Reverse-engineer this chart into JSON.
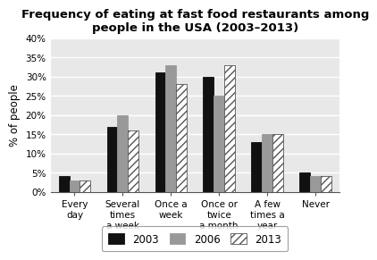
{
  "title": "Frequency of eating at fast food restaurants among\npeople in the USA (2003–2013)",
  "categories": [
    "Every\nday",
    "Several\ntimes\na week",
    "Once a\nweek",
    "Once or\ntwice\na month",
    "A few\ntimes a\nyear",
    "Never"
  ],
  "series": {
    "2003": [
      4,
      17,
      31,
      30,
      13,
      5
    ],
    "2006": [
      3,
      20,
      33,
      25,
      15,
      4
    ],
    "2013": [
      3,
      16,
      28,
      33,
      15,
      4
    ]
  },
  "bar_colors": {
    "2003": "#111111",
    "2006": "#999999",
    "2013": "#ffffff"
  },
  "bar_edgecolors": {
    "2003": "#111111",
    "2006": "#999999",
    "2013": "#555555"
  },
  "hatch": {
    "2003": "",
    "2006": "",
    "2013": "////"
  },
  "ylabel": "% of people",
  "ylim": [
    0,
    40
  ],
  "yticks": [
    0,
    5,
    10,
    15,
    20,
    25,
    30,
    35,
    40
  ],
  "ytick_labels": [
    "0%",
    "5%",
    "10%",
    "15%",
    "20%",
    "25%",
    "30%",
    "35%",
    "40%"
  ],
  "legend_labels": [
    "2003",
    "2006",
    "2013"
  ],
  "title_fontsize": 9.5,
  "axis_label_fontsize": 8.5,
  "tick_fontsize": 7.5,
  "legend_fontsize": 8.5,
  "bar_width": 0.22,
  "background_color": "#e8e8e8",
  "grid_color": "#ffffff"
}
